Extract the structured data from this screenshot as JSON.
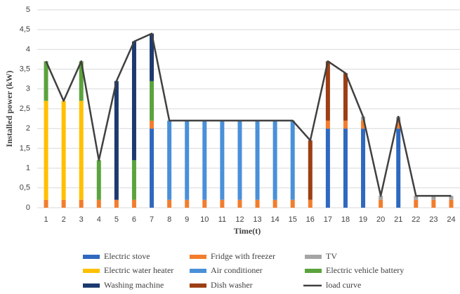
{
  "chart_data": {
    "type": "bar",
    "stacked": true,
    "x_label": "Time(t)",
    "y_label": "Installed power (kW)",
    "categories": [
      "1",
      "2",
      "3",
      "4",
      "5",
      "6",
      "7",
      "8",
      "9",
      "10",
      "11",
      "12",
      "13",
      "14",
      "15",
      "16",
      "17",
      "18",
      "19",
      "20",
      "21",
      "22",
      "23",
      "24"
    ],
    "ylim": [
      0,
      5
    ],
    "yticks": [
      0,
      {
        "value": 0.5,
        "label": "0,5"
      },
      1,
      {
        "value": 1.5,
        "label": "1,5"
      },
      2,
      {
        "value": 2.5,
        "label": "2,5"
      },
      3,
      {
        "value": 3.5,
        "label": "3,5"
      },
      4,
      {
        "value": 4.5,
        "label": "4,5"
      },
      5
    ],
    "grid": true,
    "series": [
      {
        "name": "Electric stove",
        "color": "#2f68bf",
        "values": [
          0,
          0,
          0,
          0,
          0,
          0,
          2,
          0,
          0,
          0,
          0,
          0,
          0,
          0,
          0,
          0,
          2,
          2,
          2,
          0,
          2,
          0,
          0,
          0
        ]
      },
      {
        "name": "Fridge with freezer",
        "color": "#f27d2d",
        "values": [
          0.2,
          0.2,
          0.2,
          0.2,
          0.2,
          0.2,
          0.2,
          0.2,
          0.2,
          0.2,
          0.2,
          0.2,
          0.2,
          0.2,
          0.2,
          0.2,
          0.2,
          0.2,
          0.2,
          0.2,
          0.2,
          0.2,
          0.2,
          0.2
        ]
      },
      {
        "name": "TV",
        "color": "#a5a5a5",
        "values": [
          0,
          0,
          0,
          0,
          0,
          0,
          0,
          0,
          0,
          0,
          0,
          0,
          0,
          0,
          0,
          0,
          0,
          0,
          0.1,
          0.1,
          0.1,
          0.1,
          0.1,
          0.1
        ]
      },
      {
        "name": "Electric water heater",
        "color": "#ffc000",
        "values": [
          2.5,
          2.5,
          2.5,
          0,
          0,
          0,
          0,
          0,
          0,
          0,
          0,
          0,
          0,
          0,
          0,
          0,
          0,
          0,
          0,
          0,
          0,
          0,
          0,
          0
        ]
      },
      {
        "name": "Air conditioner",
        "color": "#4a90d9",
        "values": [
          0,
          0,
          0,
          0,
          0,
          0,
          0,
          2,
          2,
          2,
          2,
          2,
          2,
          2,
          2,
          0,
          0,
          0,
          0,
          0,
          0,
          0,
          0,
          0
        ]
      },
      {
        "name": "Electric vehicle battery",
        "color": "#5ba33c",
        "values": [
          1,
          0,
          1,
          1,
          0,
          1,
          1,
          0,
          0,
          0,
          0,
          0,
          0,
          0,
          0,
          0,
          0,
          0,
          0,
          0,
          0,
          0,
          0,
          0
        ]
      },
      {
        "name": "Washing machine",
        "color": "#1c3a6e",
        "values": [
          0,
          0,
          0,
          0,
          3,
          3,
          1.2,
          0,
          0,
          0,
          0,
          0,
          0,
          0,
          0,
          0,
          0,
          0,
          0,
          0,
          0,
          0,
          0,
          0
        ]
      },
      {
        "name": "Dish washer",
        "color": "#9c3f14",
        "values": [
          0,
          0,
          0,
          0,
          0,
          0,
          0,
          0,
          0,
          0,
          0,
          0,
          0,
          0,
          0,
          1.5,
          1.5,
          1.2,
          0,
          0,
          0,
          0,
          0,
          0
        ]
      },
      {
        "name": "load curve",
        "type": "line",
        "color": "#404040",
        "values": [
          3.7,
          2.7,
          3.7,
          1.2,
          3.2,
          4.2,
          4.4,
          2.2,
          2.2,
          2.2,
          2.2,
          2.2,
          2.2,
          2.2,
          2.2,
          1.7,
          3.7,
          3.4,
          2.3,
          0.3,
          2.3,
          0.3,
          0.3,
          0.3
        ]
      }
    ]
  }
}
